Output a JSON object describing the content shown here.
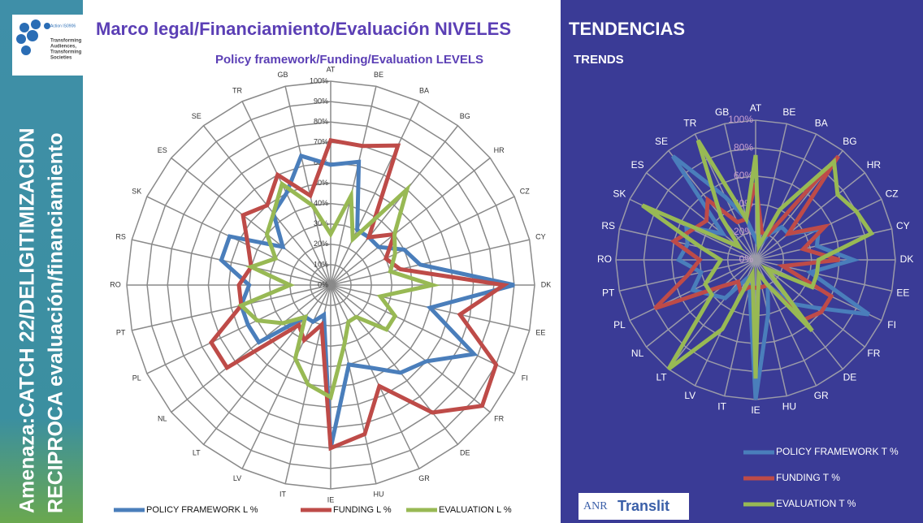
{
  "logo": {
    "action": "Action IS0906",
    "lines": [
      "Transforming",
      "Audiences,",
      "Transforming",
      "Societies"
    ]
  },
  "sidebar": {
    "line1": "Amenaza:CATCH 22/DELIGITIMIZACION",
    "line2": "RECIPROCA evaluación/financiamiento"
  },
  "header": {
    "title_left": "Marco legal/Financiamiento/Evaluación NIVELES",
    "title_right": "TENDENCIAS",
    "subtitle_left": "Policy framework/Funding/Evaluation LEVELS",
    "subtitle_right": "TRENDS"
  },
  "footer_logo": {
    "part1": "ANR",
    "part2": "Translit"
  },
  "chart_data": [
    {
      "type": "radar",
      "categories": [
        "AT",
        "BE",
        "BA",
        "BG",
        "HR",
        "CZ",
        "CY",
        "DK",
        "EE",
        "FI",
        "FR",
        "DE",
        "GR",
        "HU",
        "IE",
        "IT",
        "LV",
        "LT",
        "NL",
        "PL",
        "PT",
        "RO",
        "RS",
        "SK",
        "ES",
        "SE",
        "TR",
        "GB"
      ],
      "ylim": [
        0,
        100
      ],
      "yticks": [
        {
          "value": 0,
          "label": "0%"
        },
        {
          "value": 10,
          "label": "10%"
        },
        {
          "value": 20,
          "label": "20%"
        },
        {
          "value": 30,
          "label": "30%"
        },
        {
          "value": 40,
          "label": "40%"
        },
        {
          "value": 50,
          "label": "50%"
        },
        {
          "value": 60,
          "label": "60%"
        },
        {
          "value": 70,
          "label": "70%"
        },
        {
          "value": 80,
          "label": "80%"
        },
        {
          "value": 90,
          "label": "90%"
        },
        {
          "value": 100,
          "label": "100%"
        }
      ],
      "legend": "bottom",
      "series": [
        {
          "name": "POLICY FRAMEWORK L %",
          "color": "#4a7ebb",
          "values": [
            59,
            62,
            30,
            30,
            30,
            40,
            45,
            90,
            50,
            78,
            60,
            55,
            45,
            40,
            80,
            15,
            20,
            20,
            45,
            45,
            45,
            40,
            55,
            55,
            30,
            45,
            50,
            65
          ]
        },
        {
          "name": "FUNDING L %",
          "color": "#be4b48",
          "values": [
            71,
            70,
            76,
            30,
            40,
            30,
            35,
            85,
            65,
            90,
            95,
            80,
            55,
            75,
            80,
            20,
            30,
            25,
            65,
            65,
            45,
            45,
            40,
            45,
            55,
            50,
            60,
            45
          ]
        },
        {
          "name": "EVALUATION L %",
          "color": "#98b954",
          "values": [
            25,
            45,
            25,
            60,
            40,
            35,
            30,
            50,
            25,
            35,
            35,
            20,
            20,
            30,
            55,
            50,
            40,
            20,
            30,
            40,
            45,
            20,
            40,
            30,
            40,
            45,
            55,
            40
          ]
        }
      ]
    },
    {
      "type": "radar",
      "categories": [
        "AT",
        "BE",
        "BA",
        "BG",
        "HR",
        "CZ",
        "CY",
        "DK",
        "EE",
        "FI",
        "FR",
        "DE",
        "GR",
        "HU",
        "IE",
        "IT",
        "LV",
        "LT",
        "NL",
        "PL",
        "PT",
        "RO",
        "RS",
        "SK",
        "ES",
        "SE",
        "TR",
        "GB"
      ],
      "ylim": [
        0,
        100
      ],
      "yticks": [
        {
          "value": 0,
          "label": "0%"
        },
        {
          "value": 20,
          "label": "20%"
        },
        {
          "value": 40,
          "label": "40%"
        },
        {
          "value": 60,
          "label": "60%"
        },
        {
          "value": 80,
          "label": "80%"
        },
        {
          "value": 100,
          "label": "100%"
        }
      ],
      "legend": "right",
      "series": [
        {
          "name": "POLICY FRAMEWORK T %",
          "color": "#4a7ebb",
          "values": [
            15,
            10,
            20,
            30,
            30,
            50,
            45,
            70,
            40,
            90,
            55,
            40,
            20,
            40,
            100,
            20,
            15,
            35,
            40,
            50,
            40,
            55,
            50,
            55,
            30,
            95,
            50,
            30
          ]
        },
        {
          "name": "FUNDING T %",
          "color": "#be4b48",
          "values": [
            55,
            20,
            20,
            95,
            30,
            55,
            35,
            60,
            20,
            60,
            60,
            55,
            20,
            20,
            20,
            20,
            25,
            20,
            30,
            80,
            50,
            40,
            60,
            50,
            45,
            55,
            30,
            30
          ]
        },
        {
          "name": "EVALUATION T %",
          "color": "#98b954",
          "values": [
            75,
            10,
            40,
            90,
            75,
            80,
            85,
            45,
            45,
            45,
            10,
            65,
            20,
            10,
            85,
            10,
            55,
            100,
            40,
            40,
            30,
            25,
            40,
            90,
            15,
            40,
            95,
            30
          ]
        }
      ]
    }
  ]
}
